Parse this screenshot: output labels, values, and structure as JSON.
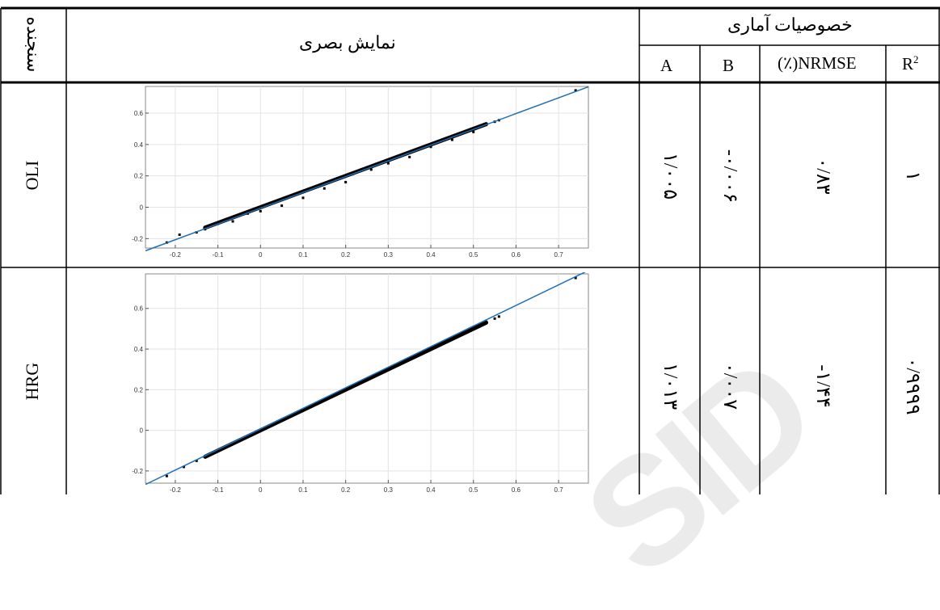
{
  "table": {
    "header": {
      "sensor": "سنجنده",
      "visual": "نمایش بصری",
      "stats": "خصوصیات آماری",
      "col_a": "A",
      "col_b": "B",
      "col_nrmse": "(٪)NRMSE",
      "col_r2_base": "R",
      "col_r2_sup": "2"
    },
    "rows": [
      {
        "sensor": "OLI",
        "a": "۱/۰۰۵",
        "b": "-۰/۰۰۶",
        "nrmse": "۰/۸۳",
        "r2": "۱"
      },
      {
        "sensor": "HRG",
        "a": "۱/۰۱۳",
        "b": "۰/۰۰۷",
        "nrmse": "-۱/۴۴",
        "r2": "۰/۹۹۹۹"
      }
    ]
  },
  "chart_data": [
    {
      "type": "scatter",
      "title": "",
      "xlabel": "",
      "ylabel": "",
      "xlim": [
        -0.27,
        0.77
      ],
      "ylim": [
        -0.26,
        0.77
      ],
      "x_ticks": [
        "-0.2",
        "-0.1",
        "0",
        "0.1",
        "0.2",
        "0.3",
        "0.4",
        "0.5",
        "0.6",
        "0.7"
      ],
      "y_ticks": [
        "-0.2",
        "0",
        "0.2",
        "0.4",
        "0.6"
      ],
      "grid": true,
      "colors": {
        "points": "#000000",
        "fit_line": "#1f6fb4"
      },
      "fit_line": {
        "slope": 1.005,
        "intercept": -0.006
      },
      "points": [
        [
          -0.22,
          -0.225
        ],
        [
          -0.19,
          -0.175
        ],
        [
          -0.15,
          -0.16
        ],
        [
          -0.13,
          -0.14
        ],
        [
          -0.1,
          -0.105
        ],
        [
          -0.065,
          -0.09
        ],
        [
          -0.03,
          -0.04
        ],
        [
          0.0,
          -0.025
        ],
        [
          0.05,
          0.01
        ],
        [
          0.1,
          0.06
        ],
        [
          0.15,
          0.12
        ],
        [
          0.2,
          0.16
        ],
        [
          0.26,
          0.24
        ],
        [
          0.3,
          0.28
        ],
        [
          0.35,
          0.32
        ],
        [
          0.4,
          0.385
        ],
        [
          0.45,
          0.43
        ],
        [
          0.5,
          0.48
        ],
        [
          0.53,
          0.525
        ],
        [
          0.55,
          0.545
        ],
        [
          0.56,
          0.555
        ],
        [
          0.74,
          0.745
        ]
      ]
    },
    {
      "type": "scatter",
      "title": "",
      "xlabel": "",
      "ylabel": "",
      "xlim": [
        -0.27,
        0.77
      ],
      "ylim": [
        -0.26,
        0.77
      ],
      "x_ticks": [
        "-0.2",
        "-0.1",
        "0",
        "0.1",
        "0.2",
        "0.3",
        "0.4",
        "0.5",
        "0.6",
        "0.7"
      ],
      "y_ticks": [
        "-0.2",
        "0",
        "0.2",
        "0.4",
        "0.6"
      ],
      "grid": true,
      "colors": {
        "points": "#000000",
        "fit_line": "#1f6fb4"
      },
      "fit_line": {
        "slope": 1.013,
        "intercept": 0.007
      },
      "points": [
        [
          -0.22,
          -0.225
        ],
        [
          -0.18,
          -0.18
        ],
        [
          -0.15,
          -0.15
        ],
        [
          -0.13,
          -0.13
        ],
        [
          -0.1,
          -0.1
        ],
        [
          -0.05,
          -0.05
        ],
        [
          0.0,
          0.0
        ],
        [
          0.05,
          0.05
        ],
        [
          0.1,
          0.1
        ],
        [
          0.15,
          0.15
        ],
        [
          0.2,
          0.2
        ],
        [
          0.25,
          0.25
        ],
        [
          0.3,
          0.3
        ],
        [
          0.35,
          0.35
        ],
        [
          0.4,
          0.4
        ],
        [
          0.45,
          0.45
        ],
        [
          0.5,
          0.5
        ],
        [
          0.53,
          0.535
        ],
        [
          0.55,
          0.55
        ],
        [
          0.56,
          0.56
        ],
        [
          0.74,
          0.75
        ]
      ]
    }
  ]
}
